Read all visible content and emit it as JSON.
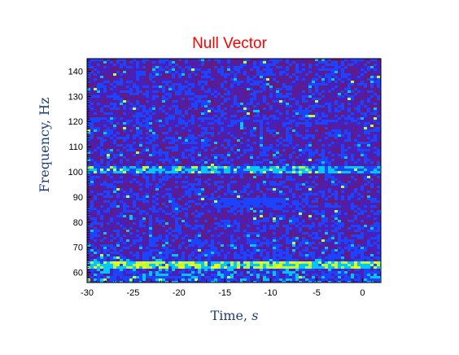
{
  "chart_data": {
    "type": "heatmap",
    "title": "Null Vector",
    "xlabel": "Time, s",
    "xlabel_parts": {
      "word": "Time, ",
      "unit": "s"
    },
    "ylabel": "Frequency,  Hz",
    "xlim": [
      -30,
      2
    ],
    "ylim": [
      56,
      145
    ],
    "x_ticks": [
      -30,
      -25,
      -20,
      -15,
      -10,
      -5,
      0
    ],
    "y_ticks": [
      60,
      70,
      80,
      90,
      100,
      110,
      120,
      130,
      140
    ],
    "x_tick_labels": [
      "-30",
      "-25",
      "-20",
      "-15",
      "-10",
      "-5",
      "0"
    ],
    "y_tick_labels": [
      "60",
      "70",
      "80",
      "90",
      "100",
      "110",
      "120",
      "130",
      "140"
    ],
    "colormap": [
      "#6a1a74",
      "#4a1fb8",
      "#1a44ff",
      "#00c8ff",
      "#b6ff3a",
      "#f2ff00"
    ],
    "background_color": "#5a1a9a",
    "features": [
      {
        "freq": 63,
        "intensity": 0.9,
        "x_range": [
          -30,
          2
        ]
      },
      {
        "freq": 101,
        "intensity": 0.7,
        "x_range": [
          -30,
          2
        ]
      },
      {
        "freq": 88,
        "intensity": 0.45,
        "x_range": [
          -16,
          -7
        ]
      },
      {
        "freq": 120,
        "intensity": 0.3,
        "x_range": [
          -30,
          2
        ]
      }
    ],
    "grid": false,
    "colorbar": false
  }
}
